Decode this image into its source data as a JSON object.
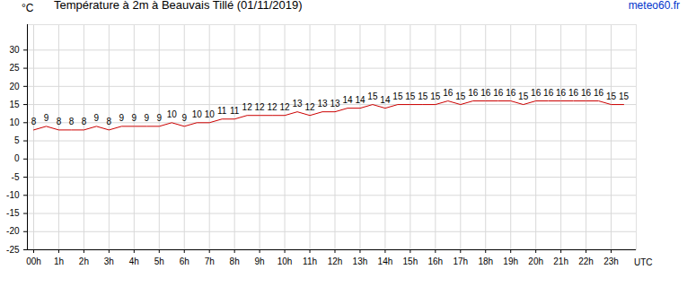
{
  "chart_data": {
    "type": "line",
    "title": "Température à 2m à Beauvais Tillé (01/11/2019)",
    "y_label": "°C",
    "x_label": "UTC",
    "annotation": "meteo60.fr",
    "color": "#cc0000",
    "grid": true,
    "data_labels": true,
    "x": [
      0,
      0.5,
      1,
      1.5,
      2,
      2.5,
      3,
      3.5,
      4,
      4.5,
      5,
      5.5,
      6,
      6.5,
      7,
      7.5,
      8,
      8.5,
      9,
      9.5,
      10,
      10.5,
      11,
      11.5,
      12,
      12.5,
      13,
      13.5,
      14,
      14.5,
      15,
      15.5,
      16,
      16.5,
      17,
      17.5,
      18,
      18.5,
      19,
      19.5,
      20,
      20.5,
      21,
      21.5,
      22,
      22.5,
      23,
      23.5
    ],
    "values": [
      8,
      9,
      8,
      8,
      8,
      9,
      8,
      9,
      9,
      9,
      9,
      10,
      9,
      10,
      10,
      11,
      11,
      12,
      12,
      12,
      12,
      13,
      12,
      13,
      13,
      14,
      14,
      15,
      14,
      15,
      15,
      15,
      15,
      16,
      15,
      16,
      16,
      16,
      16,
      15,
      16,
      16,
      16,
      16,
      16,
      16,
      15,
      15
    ],
    "xlim": [
      -0.25,
      24
    ],
    "xticks": [
      {
        "value": 0,
        "label": "00h"
      },
      {
        "value": 1,
        "label": "1h"
      },
      {
        "value": 2,
        "label": "2h"
      },
      {
        "value": 3,
        "label": "3h"
      },
      {
        "value": 4,
        "label": "4h"
      },
      {
        "value": 5,
        "label": "5h"
      },
      {
        "value": 6,
        "label": "6h"
      },
      {
        "value": 7,
        "label": "7h"
      },
      {
        "value": 8,
        "label": "8h"
      },
      {
        "value": 9,
        "label": "9h"
      },
      {
        "value": 10,
        "label": "10h"
      },
      {
        "value": 11,
        "label": "11h"
      },
      {
        "value": 12,
        "label": "12h"
      },
      {
        "value": 13,
        "label": "13h"
      },
      {
        "value": 14,
        "label": "14h"
      },
      {
        "value": 15,
        "label": "15h"
      },
      {
        "value": 16,
        "label": "16h"
      },
      {
        "value": 17,
        "label": "17h"
      },
      {
        "value": 18,
        "label": "18h"
      },
      {
        "value": 19,
        "label": "19h"
      },
      {
        "value": 20,
        "label": "20h"
      },
      {
        "value": 21,
        "label": "21h"
      },
      {
        "value": 22,
        "label": "22h"
      },
      {
        "value": 23,
        "label": "23h"
      }
    ],
    "ylim": [
      -25,
      37
    ],
    "yticks": [
      -25,
      -20,
      -15,
      -10,
      -5,
      0,
      5,
      10,
      15,
      20,
      25,
      30
    ]
  }
}
